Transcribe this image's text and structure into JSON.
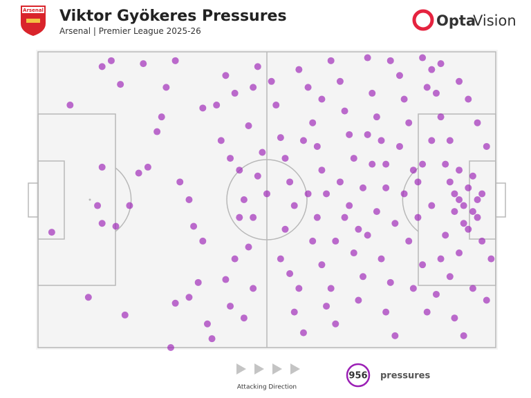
{
  "chart_data": {
    "type": "scatter",
    "title": "Viktor Gyökeres Pressures",
    "subtitle": "Arsenal | Premier League 2025-26",
    "total": 956,
    "total_label": "pressures",
    "direction_label": "Attacking Direction",
    "color": "#9b1fb5",
    "xlim": [
      0,
      100
    ],
    "ylim": [
      0,
      100
    ],
    "x": [
      7,
      3,
      14,
      11,
      19,
      29,
      16,
      14,
      18,
      23,
      13,
      14,
      17,
      20,
      22,
      24,
      26,
      28,
      30,
      27,
      31,
      33,
      34,
      36,
      35,
      33,
      30,
      37,
      38,
      36,
      39,
      41,
      43,
      40,
      42,
      44,
      45,
      44,
      46,
      43,
      41,
      42,
      45,
      47,
      46,
      47,
      48,
      49,
      48,
      50,
      52,
      53,
      54,
      55,
      56,
      54,
      53,
      55,
      57,
      56,
      58,
      59,
      60,
      61,
      62,
      63,
      61,
      60,
      62,
      64,
      63,
      65,
      66,
      67,
      68,
      69,
      66,
      68,
      70,
      69,
      71,
      70,
      72,
      73,
      74,
      75,
      73,
      76,
      74,
      72,
      75,
      77,
      76,
      78,
      79,
      80,
      81,
      79,
      82,
      80,
      83,
      81,
      84,
      82,
      85,
      86,
      87,
      88,
      86,
      89,
      90,
      91,
      92,
      93,
      94,
      95,
      96,
      97,
      95,
      93,
      92,
      94,
      96,
      91,
      89,
      88,
      90,
      87,
      91,
      93,
      94,
      96,
      98,
      97,
      99,
      98,
      95,
      92,
      88,
      84,
      57,
      51,
      64,
      77,
      85,
      71,
      67,
      59,
      47,
      65,
      78,
      83,
      86,
      84,
      58,
      62,
      72,
      76,
      90,
      92
    ],
    "y": [
      82,
      39,
      61,
      17,
      11,
      0,
      97,
      95,
      89,
      96,
      48,
      42,
      41,
      48,
      59,
      61,
      73,
      88,
      97,
      78,
      56,
      50,
      41,
      36,
      22,
      17,
      15,
      8,
      3,
      81,
      82,
      92,
      86,
      70,
      64,
      60,
      50,
      44,
      34,
      30,
      23,
      14,
      10,
      20,
      75,
      88,
      95,
      66,
      58,
      52,
      82,
      71,
      64,
      56,
      48,
      40,
      30,
      25,
      20,
      12,
      5,
      88,
      76,
      68,
      60,
      52,
      44,
      36,
      28,
      20,
      14,
      8,
      90,
      80,
      72,
      64,
      56,
      48,
      40,
      32,
      24,
      16,
      98,
      86,
      78,
      70,
      62,
      54,
      46,
      38,
      30,
      22,
      12,
      4,
      92,
      84,
      76,
      68,
      60,
      52,
      44,
      36,
      28,
      20,
      12,
      94,
      86,
      78,
      70,
      62,
      56,
      52,
      50,
      48,
      54,
      46,
      50,
      52,
      58,
      42,
      60,
      40,
      44,
      46,
      38,
      30,
      24,
      18,
      10,
      4,
      84,
      76,
      68,
      36,
      30,
      16,
      20,
      90,
      96,
      98,
      94,
      90,
      97,
      97,
      88,
      54,
      44,
      52,
      44,
      36,
      42,
      56,
      48,
      62,
      70,
      84,
      72,
      62,
      70,
      32
    ]
  },
  "branding": {
    "badge": "Arsenal",
    "logo_a": "Opta",
    "logo_b": "Vision"
  }
}
